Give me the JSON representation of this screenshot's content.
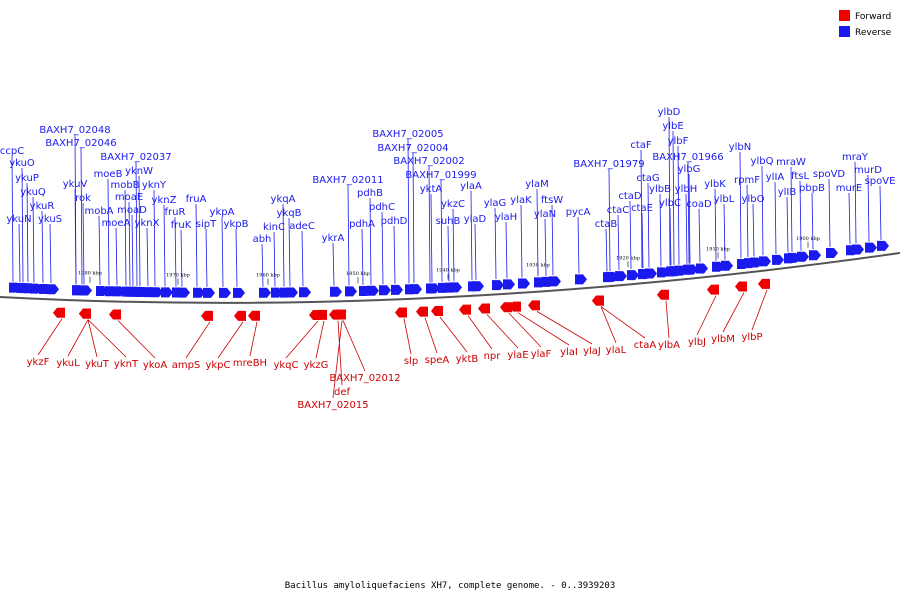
{
  "legend": [
    {
      "label": "Forward",
      "color": "#ee0000"
    },
    {
      "label": "Reverse",
      "color": "#1a1aee"
    }
  ],
  "caption": "Bacillus amyloliquefaciens XH7, complete genome. - 0..3939203",
  "scale_ticks": [
    "1980 kbp",
    "1970 kbp",
    "1960 kbp",
    "1950 kbp",
    "1940 kbp",
    "1930 kbp",
    "1920 kbp",
    "1910 kbp",
    "1900 kbp"
  ],
  "reverse_genes": [
    "ccpC",
    "ykuO",
    "ykuP",
    "ykuQ",
    "ykuR",
    "ykuN",
    "ykuS",
    "BAXH7_02048",
    "BAXH7_02046",
    "ykuV",
    "rok",
    "mobA",
    "moeB",
    "mobB",
    "moeA",
    "BAXH7_02037",
    "yknW",
    "moaE",
    "moaD",
    "yknY",
    "yknX",
    "yknZ",
    "fruR",
    "fruK",
    "fruA",
    "sipT",
    "ykpA",
    "ykpB",
    "abh",
    "kinC",
    "ykqA",
    "ykqB",
    "adeC",
    "ykrA",
    "BAXH7_02011",
    "pdhB",
    "pdhA",
    "pdhC",
    "pdhD",
    "BAXH7_02005",
    "BAXH7_02004",
    "BAXH7_02002",
    "BAXH7_01999",
    "yktA",
    "ykzC",
    "suhB",
    "ylaA",
    "ylaD",
    "ylaG",
    "ylaH",
    "ylaK",
    "ylaM",
    "ftsW",
    "ylaN",
    "pycA",
    "BAXH7_01979",
    "ctaB",
    "ctaC",
    "ctaD",
    "ctaE",
    "ctaF",
    "ctaG",
    "ylbB",
    "ylbC",
    "ylbD",
    "ylbE",
    "ylbF",
    "BAXH7_01966",
    "ylbG",
    "ylbH",
    "coaD",
    "ylbK",
    "ylbL",
    "ylbN",
    "ylbO",
    "rpmF",
    "ylbQ",
    "ylIA",
    "ylIB",
    "mraW",
    "ftsL",
    "pbpB",
    "spoVD",
    "murE",
    "mraY",
    "murD",
    "spoVE"
  ],
  "forward_genes": [
    "ykzF",
    "ykuL",
    "ykuT",
    "yknT",
    "ykoA",
    "ampS",
    "ykpC",
    "mreBH",
    "ykqC",
    "ykzG",
    "BAXH7_02012",
    "def",
    "BAXH7_02015",
    "slp",
    "speA",
    "yktB",
    "npr",
    "ylaE",
    "ylaF",
    "ylaI",
    "ylaJ",
    "ylaL",
    "ctaA",
    "ylbA",
    "ylbJ",
    "ylbM",
    "ylbP"
  ]
}
